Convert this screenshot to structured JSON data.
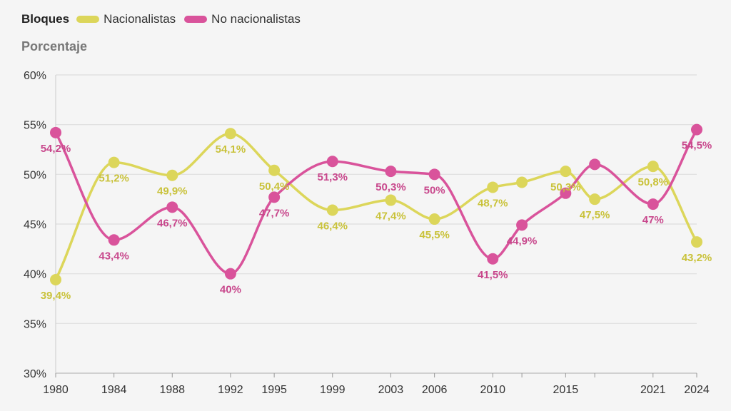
{
  "legend": {
    "title": "Bloques",
    "items": [
      {
        "label": "Nacionalistas",
        "color": "#dcd65a"
      },
      {
        "label": "No nacionalistas",
        "color": "#d9539b"
      }
    ]
  },
  "chart_data": {
    "type": "line",
    "title": "",
    "xlabel": "",
    "ylabel": "Porcentaje",
    "ylim": [
      30,
      60
    ],
    "yticks": [
      "30%",
      "35%",
      "40%",
      "45%",
      "50%",
      "55%",
      "60%"
    ],
    "xticks": [
      "1980",
      "1984",
      "1988",
      "1992",
      "1995",
      "1999",
      "2003",
      "2006",
      "2010",
      "2015",
      "2021",
      "2024"
    ],
    "grid": true,
    "legend_position": "top-left",
    "series": [
      {
        "name": "Nacionalistas",
        "color": "#dcd65a",
        "label_color": "#c9c23a",
        "points": [
          {
            "x": 1980,
            "y": 39.4,
            "label": "39,4%"
          },
          {
            "x": 1984,
            "y": 51.2,
            "label": "51,2%"
          },
          {
            "x": 1988,
            "y": 49.9,
            "label": "49,9%"
          },
          {
            "x": 1992,
            "y": 54.1,
            "label": "54,1%"
          },
          {
            "x": 1995,
            "y": 50.4,
            "label": "50,4%"
          },
          {
            "x": 1999,
            "y": 46.4,
            "label": "46,4%"
          },
          {
            "x": 2003,
            "y": 47.4,
            "label": "47,4%"
          },
          {
            "x": 2006,
            "y": 45.5,
            "label": "45,5%"
          },
          {
            "x": 2010,
            "y": 48.7,
            "label": "48,7%"
          },
          {
            "x": 2012,
            "y": 49.2,
            "label": ""
          },
          {
            "x": 2015,
            "y": 50.3,
            "label": "50,3%"
          },
          {
            "x": 2017,
            "y": 47.5,
            "label": "47,5%"
          },
          {
            "x": 2021,
            "y": 50.8,
            "label": "50,8%"
          },
          {
            "x": 2024,
            "y": 43.2,
            "label": "43,2%"
          }
        ]
      },
      {
        "name": "No nacionalistas",
        "color": "#d9539b",
        "label_color": "#c8478c",
        "points": [
          {
            "x": 1980,
            "y": 54.2,
            "label": "54,2%"
          },
          {
            "x": 1984,
            "y": 43.4,
            "label": "43,4%"
          },
          {
            "x": 1988,
            "y": 46.7,
            "label": "46,7%"
          },
          {
            "x": 1992,
            "y": 40.0,
            "label": "40%"
          },
          {
            "x": 1995,
            "y": 47.7,
            "label": "47,7%"
          },
          {
            "x": 1999,
            "y": 51.3,
            "label": "51,3%"
          },
          {
            "x": 2003,
            "y": 50.3,
            "label": "50,3%"
          },
          {
            "x": 2006,
            "y": 50.0,
            "label": "50%"
          },
          {
            "x": 2010,
            "y": 41.5,
            "label": "41,5%"
          },
          {
            "x": 2012,
            "y": 44.9,
            "label": "44,9%"
          },
          {
            "x": 2015,
            "y": 48.1,
            "label": ""
          },
          {
            "x": 2017,
            "y": 51.0,
            "label": ""
          },
          {
            "x": 2021,
            "y": 47.0,
            "label": "47%"
          },
          {
            "x": 2024,
            "y": 54.5,
            "label": "54,5%"
          }
        ]
      }
    ]
  }
}
